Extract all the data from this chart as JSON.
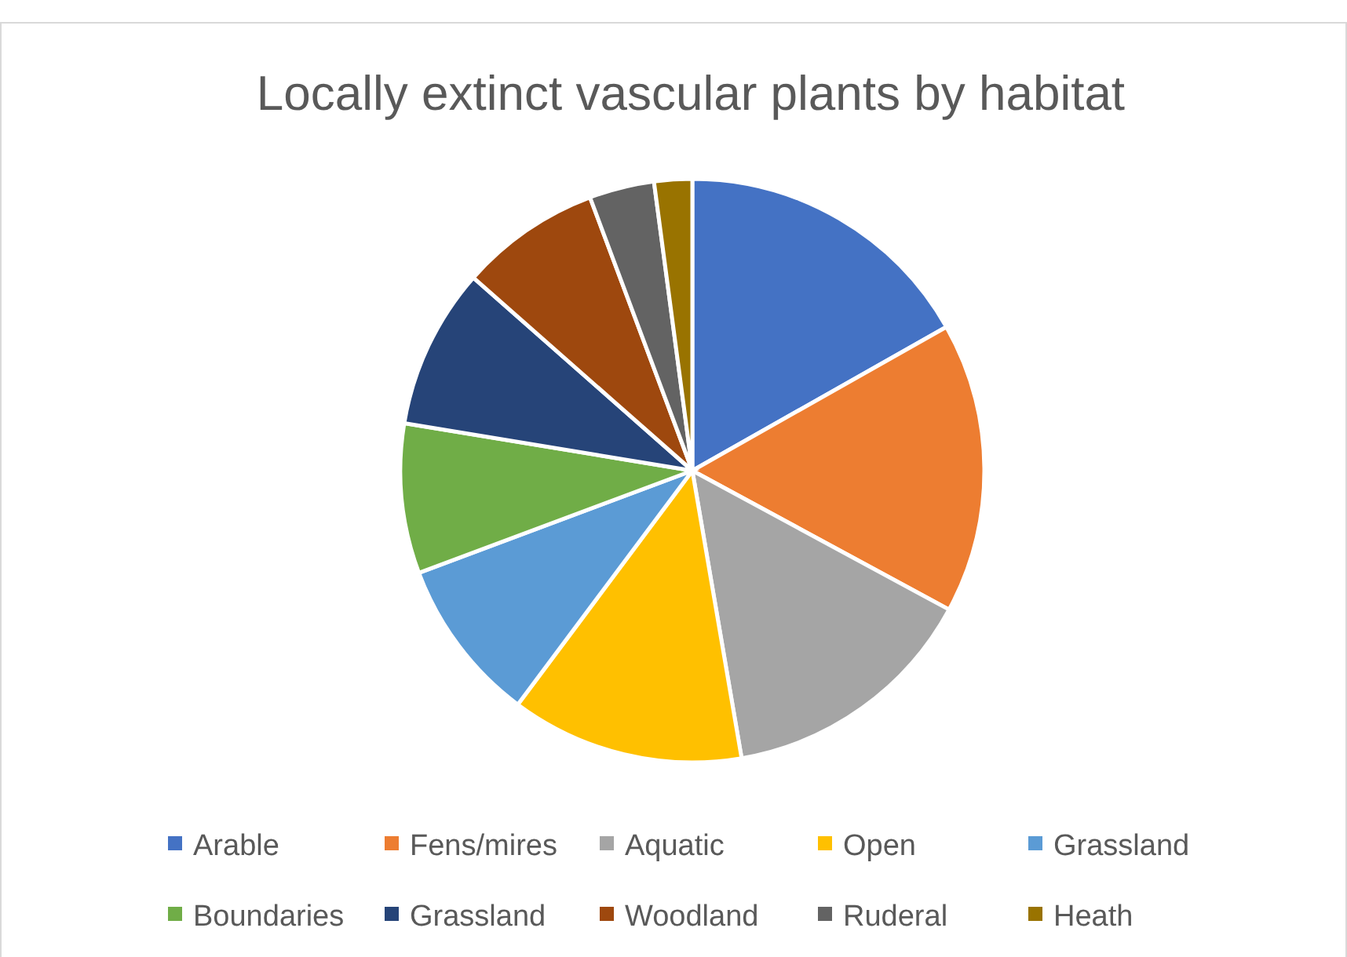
{
  "chart_data": {
    "type": "pie",
    "title": "Locally extinct vascular plants by habitat",
    "categories": [
      "Arable",
      "Fens/mires",
      "Aquatic",
      "Open",
      "Grassland",
      "Boundaries",
      "Grassland",
      "Woodland",
      "Ruderal",
      "Heath"
    ],
    "values": [
      16.8,
      16.1,
      14.4,
      12.9,
      9.1,
      8.3,
      8.9,
      7.8,
      3.6,
      2.1
    ],
    "colors": [
      "#4472c4",
      "#ed7d31",
      "#a5a5a5",
      "#ffc000",
      "#5b9bd5",
      "#70ad47",
      "#264478",
      "#9e480e",
      "#636363",
      "#997300"
    ],
    "legend": "bottom"
  }
}
